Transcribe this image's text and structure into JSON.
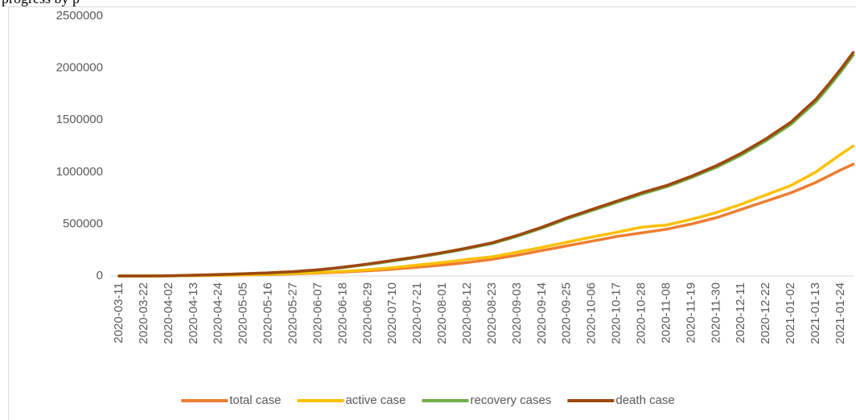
{
  "chart_data": {
    "type": "line",
    "title": "progress by p",
    "categories": [
      "2020-03-11",
      null,
      "2020-03-22",
      null,
      "2020-04-02",
      null,
      "2020-04-13",
      null,
      "2020-04-24",
      null,
      "2020-05-05",
      null,
      "2020-05-16",
      null,
      "2020-05-27",
      null,
      "2020-06-07",
      null,
      "2020-06-18",
      null,
      "2020-06-29",
      null,
      "2020-07-10",
      null,
      "2020-07-21",
      null,
      "2020-08-01",
      null,
      "2020-08-12",
      null,
      "2020-08-23",
      null,
      "2020-09-03",
      null,
      "2020-09-14",
      null,
      "2020-09-25",
      null,
      "2020-10-06",
      null,
      "2020-10-17",
      null,
      "2020-10-28",
      null,
      "2020-11-08",
      null,
      "2020-11-19",
      null,
      "2020-11-30",
      null,
      "2020-12-11",
      null,
      "2020-12-22",
      null,
      "2021-01-02",
      null,
      "2021-01-13",
      null,
      "2021-01-24",
      null
    ],
    "series": [
      {
        "name": "total case",
        "color": "#ED7D31",
        "values": [
          0,
          0,
          0,
          0,
          1000,
          2000,
          3000,
          4000,
          6000,
          8000,
          10000,
          12000,
          14000,
          17000,
          20000,
          24000,
          28000,
          33000,
          38000,
          44000,
          50000,
          57000,
          65000,
          75000,
          85000,
          95000,
          105000,
          117000,
          130000,
          145000,
          160000,
          180000,
          200000,
          222000,
          245000,
          267000,
          290000,
          312000,
          335000,
          357000,
          380000,
          397000,
          415000,
          432000,
          450000,
          475000,
          500000,
          530000,
          560000,
          600000,
          640000,
          680000,
          720000,
          760000,
          800000,
          850000,
          900000,
          960000,
          1020000,
          1075000
        ]
      },
      {
        "name": "active case",
        "color": "#FFC000",
        "values": [
          0,
          0,
          0,
          0,
          1000,
          2000,
          4000,
          6000,
          8000,
          10000,
          12000,
          14000,
          17000,
          20000,
          24000,
          28000,
          33000,
          39000,
          45000,
          52000,
          60000,
          70000,
          80000,
          92000,
          105000,
          117000,
          130000,
          145000,
          160000,
          172000,
          185000,
          207000,
          230000,
          252000,
          275000,
          300000,
          325000,
          350000,
          375000,
          397000,
          420000,
          445000,
          470000,
          480000,
          490000,
          517000,
          545000,
          577000,
          610000,
          650000,
          690000,
          735000,
          780000,
          825000,
          870000,
          935000,
          1000000,
          1085000,
          1170000,
          1250000
        ]
      },
      {
        "name": "recovery cases",
        "color": "#70AD47",
        "values": [
          0,
          0,
          0,
          1000,
          2000,
          4000,
          7000,
          10000,
          14000,
          17000,
          21000,
          25000,
          29000,
          34000,
          40000,
          49000,
          57000,
          69000,
          81000,
          96000,
          111000,
          127000,
          145000,
          162000,
          180000,
          199000,
          219000,
          241000,
          264000,
          288000,
          313000,
          347000,
          382000,
          421000,
          461000,
          505000,
          550000,
          590000,
          630000,
          669000,
          709000,
          748000,
          788000,
          823000,
          858000,
          902000,
          947000,
          996000,
          1045000,
          1104000,
          1163000,
          1232000,
          1301000,
          1380000,
          1459000,
          1567000,
          1675000,
          1814000,
          1963000,
          2125000
        ]
      },
      {
        "name": "death case",
        "color": "#9E480E",
        "values": [
          0,
          0,
          0,
          1000,
          2000,
          5000,
          8000,
          11000,
          15000,
          18000,
          22000,
          26000,
          30000,
          36000,
          42000,
          51000,
          60000,
          72000,
          85000,
          100000,
          115000,
          132000,
          150000,
          167000,
          185000,
          205000,
          225000,
          247000,
          270000,
          295000,
          320000,
          355000,
          390000,
          430000,
          470000,
          515000,
          560000,
          600000,
          640000,
          680000,
          720000,
          760000,
          800000,
          835000,
          870000,
          915000,
          960000,
          1010000,
          1060000,
          1120000,
          1180000,
          1250000,
          1320000,
          1400000,
          1480000,
          1590000,
          1700000,
          1840000,
          1990000,
          2150000
        ]
      }
    ],
    "ylim": [
      0,
      2500000
    ],
    "yticks": [
      0,
      500000,
      1000000,
      1500000,
      2000000,
      2500000
    ],
    "grid": false,
    "legend": "bottom"
  }
}
